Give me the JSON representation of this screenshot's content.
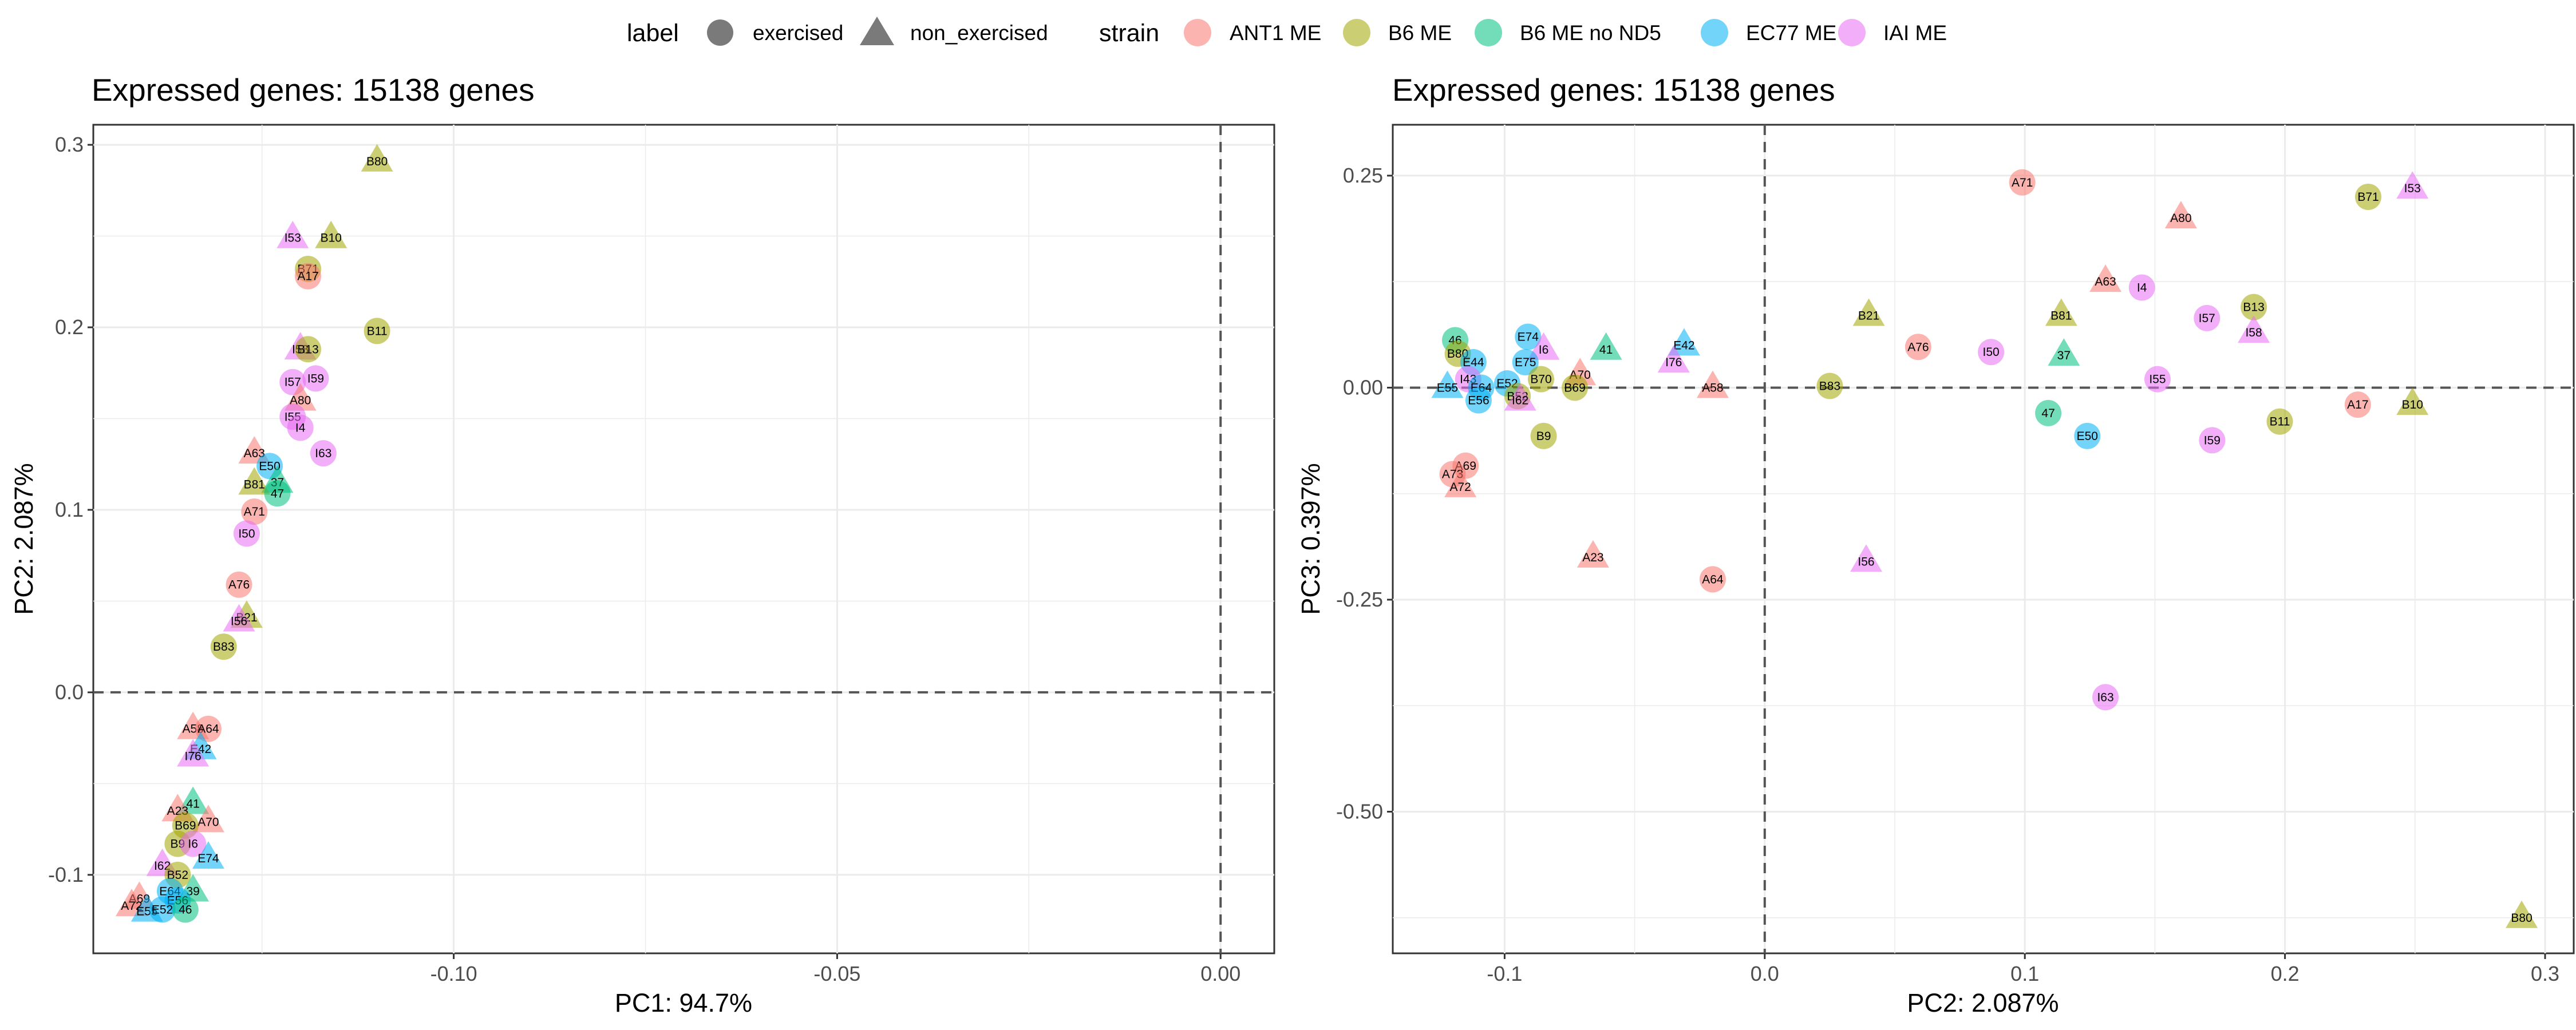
{
  "legend": {
    "label_title": "label",
    "label_items": [
      {
        "name": "exercised",
        "shape": "circle"
      },
      {
        "name": "non_exercised",
        "shape": "triangle"
      }
    ],
    "strain_title": "strain",
    "strain_items": [
      {
        "name": "ANT1 ME",
        "color": "#F8766D"
      },
      {
        "name": "B6 ME",
        "color": "#A3A500"
      },
      {
        "name": "B6 ME no ND5",
        "color": "#00BF7D"
      },
      {
        "name": "EC77 ME",
        "color": "#00B0F6"
      },
      {
        "name": "IAI ME",
        "color": "#E76BF3"
      }
    ]
  },
  "chart_data": [
    {
      "type": "scatter",
      "title": "Expressed genes: 15138 genes",
      "xlabel": "PC1: 94.7%",
      "ylabel": "PC2: 2.087%",
      "xlim": [
        -0.147,
        0.007
      ],
      "ylim": [
        -0.143,
        0.311
      ],
      "xticks": [
        -0.1,
        -0.05,
        0.0
      ],
      "xtick_labels": [
        "-0.10",
        "-0.05",
        "0.00"
      ],
      "yticks": [
        -0.1,
        0.0,
        0.1,
        0.2,
        0.3
      ],
      "ytick_labels": [
        "-0.1",
        "0.0",
        "0.1",
        "0.2",
        "0.3"
      ],
      "reference_lines": {
        "x": 0,
        "y": 0
      },
      "grid": true,
      "points": [
        {
          "label": "B80",
          "x": -0.11,
          "y": 0.291,
          "strain": "B6 ME",
          "shape": "triangle"
        },
        {
          "label": "I53",
          "x": -0.121,
          "y": 0.249,
          "strain": "IAI ME",
          "shape": "triangle"
        },
        {
          "label": "B10",
          "x": -0.116,
          "y": 0.249,
          "strain": "B6 ME",
          "shape": "triangle"
        },
        {
          "label": "B71",
          "x": -0.119,
          "y": 0.232,
          "strain": "B6 ME",
          "shape": "circle"
        },
        {
          "label": "A17",
          "x": -0.119,
          "y": 0.228,
          "strain": "ANT1 ME",
          "shape": "circle"
        },
        {
          "label": "B11",
          "x": -0.11,
          "y": 0.198,
          "strain": "B6 ME",
          "shape": "circle"
        },
        {
          "label": "I58",
          "x": -0.12,
          "y": 0.188,
          "strain": "IAI ME",
          "shape": "triangle"
        },
        {
          "label": "B13",
          "x": -0.119,
          "y": 0.188,
          "strain": "B6 ME",
          "shape": "circle"
        },
        {
          "label": "I57",
          "x": -0.121,
          "y": 0.17,
          "strain": "IAI ME",
          "shape": "circle"
        },
        {
          "label": "I59",
          "x": -0.118,
          "y": 0.172,
          "strain": "IAI ME",
          "shape": "circle"
        },
        {
          "label": "A80",
          "x": -0.12,
          "y": 0.16,
          "strain": "ANT1 ME",
          "shape": "triangle"
        },
        {
          "label": "I55",
          "x": -0.121,
          "y": 0.151,
          "strain": "IAI ME",
          "shape": "circle"
        },
        {
          "label": "I4",
          "x": -0.12,
          "y": 0.145,
          "strain": "IAI ME",
          "shape": "circle"
        },
        {
          "label": "I63",
          "x": -0.117,
          "y": 0.131,
          "strain": "IAI ME",
          "shape": "circle"
        },
        {
          "label": "A63",
          "x": -0.126,
          "y": 0.131,
          "strain": "ANT1 ME",
          "shape": "triangle"
        },
        {
          "label": "E50",
          "x": -0.124,
          "y": 0.124,
          "strain": "EC77 ME",
          "shape": "circle"
        },
        {
          "label": "37",
          "x": -0.123,
          "y": 0.115,
          "strain": "B6 ME no ND5",
          "shape": "triangle"
        },
        {
          "label": "B81",
          "x": -0.126,
          "y": 0.114,
          "strain": "B6 ME",
          "shape": "triangle"
        },
        {
          "label": "47",
          "x": -0.123,
          "y": 0.109,
          "strain": "B6 ME no ND5",
          "shape": "circle"
        },
        {
          "label": "A71",
          "x": -0.126,
          "y": 0.099,
          "strain": "ANT1 ME",
          "shape": "circle"
        },
        {
          "label": "I50",
          "x": -0.127,
          "y": 0.087,
          "strain": "IAI ME",
          "shape": "circle"
        },
        {
          "label": "A76",
          "x": -0.128,
          "y": 0.059,
          "strain": "ANT1 ME",
          "shape": "circle"
        },
        {
          "label": "B21",
          "x": -0.127,
          "y": 0.041,
          "strain": "B6 ME",
          "shape": "triangle"
        },
        {
          "label": "I56",
          "x": -0.128,
          "y": 0.039,
          "strain": "IAI ME",
          "shape": "triangle"
        },
        {
          "label": "B83",
          "x": -0.13,
          "y": 0.025,
          "strain": "B6 ME",
          "shape": "circle"
        },
        {
          "label": "A58",
          "x": -0.134,
          "y": -0.02,
          "strain": "ANT1 ME",
          "shape": "triangle"
        },
        {
          "label": "A64",
          "x": -0.132,
          "y": -0.02,
          "strain": "ANT1 ME",
          "shape": "circle"
        },
        {
          "label": "E42",
          "x": -0.133,
          "y": -0.031,
          "strain": "EC77 ME",
          "shape": "triangle"
        },
        {
          "label": "I76",
          "x": -0.134,
          "y": -0.035,
          "strain": "IAI ME",
          "shape": "triangle"
        },
        {
          "label": "41",
          "x": -0.134,
          "y": -0.061,
          "strain": "B6 ME no ND5",
          "shape": "triangle"
        },
        {
          "label": "A23",
          "x": -0.136,
          "y": -0.065,
          "strain": "ANT1 ME",
          "shape": "triangle"
        },
        {
          "label": "A70",
          "x": -0.132,
          "y": -0.071,
          "strain": "ANT1 ME",
          "shape": "triangle"
        },
        {
          "label": "B69",
          "x": -0.135,
          "y": -0.073,
          "strain": "B6 ME",
          "shape": "circle"
        },
        {
          "label": "B9",
          "x": -0.136,
          "y": -0.083,
          "strain": "B6 ME",
          "shape": "circle"
        },
        {
          "label": "I6",
          "x": -0.134,
          "y": -0.083,
          "strain": "IAI ME",
          "shape": "circle"
        },
        {
          "label": "E74",
          "x": -0.132,
          "y": -0.091,
          "strain": "EC77 ME",
          "shape": "triangle"
        },
        {
          "label": "I62",
          "x": -0.138,
          "y": -0.095,
          "strain": "IAI ME",
          "shape": "triangle"
        },
        {
          "label": "B52",
          "x": -0.136,
          "y": -0.1,
          "strain": "B6 ME",
          "shape": "circle"
        },
        {
          "label": "E64",
          "x": -0.137,
          "y": -0.109,
          "strain": "EC77 ME",
          "shape": "circle"
        },
        {
          "label": "39",
          "x": -0.134,
          "y": -0.109,
          "strain": "B6 ME no ND5",
          "shape": "triangle"
        },
        {
          "label": "A69",
          "x": -0.141,
          "y": -0.113,
          "strain": "ANT1 ME",
          "shape": "triangle"
        },
        {
          "label": "A72",
          "x": -0.142,
          "y": -0.117,
          "strain": "ANT1 ME",
          "shape": "triangle"
        },
        {
          "label": "E56",
          "x": -0.136,
          "y": -0.114,
          "strain": "EC77 ME",
          "shape": "circle"
        },
        {
          "label": "E55",
          "x": -0.14,
          "y": -0.12,
          "strain": "EC77 ME",
          "shape": "triangle"
        },
        {
          "label": "E52",
          "x": -0.138,
          "y": -0.119,
          "strain": "EC77 ME",
          "shape": "circle"
        },
        {
          "label": "46",
          "x": -0.135,
          "y": -0.119,
          "strain": "B6 ME no ND5",
          "shape": "circle"
        }
      ]
    },
    {
      "type": "scatter",
      "title": "Expressed genes: 15138 genes",
      "xlabel": "PC2: 2.087%",
      "ylabel": "PC3: 0.397%",
      "xlim": [
        -0.143,
        0.311
      ],
      "ylim": [
        -0.667,
        0.31
      ],
      "xticks": [
        -0.1,
        0.0,
        0.1,
        0.2,
        0.3
      ],
      "xtick_labels": [
        "-0.1",
        "0.0",
        "0.1",
        "0.2",
        "0.3"
      ],
      "yticks": [
        -0.5,
        -0.25,
        0.0,
        0.25
      ],
      "ytick_labels": [
        "-0.50",
        "-0.25",
        "0.00",
        "0.25"
      ],
      "reference_lines": {
        "x": 0,
        "y": 0
      },
      "grid": true,
      "points": [
        {
          "label": "A71",
          "x": 0.099,
          "y": 0.242,
          "strain": "ANT1 ME",
          "shape": "circle"
        },
        {
          "label": "I53",
          "x": 0.249,
          "y": 0.235,
          "strain": "IAI ME",
          "shape": "triangle"
        },
        {
          "label": "B71",
          "x": 0.232,
          "y": 0.225,
          "strain": "B6 ME",
          "shape": "circle"
        },
        {
          "label": "A80",
          "x": 0.16,
          "y": 0.2,
          "strain": "ANT1 ME",
          "shape": "triangle"
        },
        {
          "label": "A63",
          "x": 0.131,
          "y": 0.125,
          "strain": "ANT1 ME",
          "shape": "triangle"
        },
        {
          "label": "I4",
          "x": 0.145,
          "y": 0.118,
          "strain": "IAI ME",
          "shape": "circle"
        },
        {
          "label": "B21",
          "x": 0.04,
          "y": 0.085,
          "strain": "B6 ME",
          "shape": "triangle"
        },
        {
          "label": "B81",
          "x": 0.114,
          "y": 0.085,
          "strain": "B6 ME",
          "shape": "triangle"
        },
        {
          "label": "B13",
          "x": 0.188,
          "y": 0.095,
          "strain": "B6 ME",
          "shape": "circle"
        },
        {
          "label": "I57",
          "x": 0.17,
          "y": 0.082,
          "strain": "IAI ME",
          "shape": "circle"
        },
        {
          "label": "I58",
          "x": 0.188,
          "y": 0.065,
          "strain": "IAI ME",
          "shape": "triangle"
        },
        {
          "label": "A76",
          "x": 0.059,
          "y": 0.048,
          "strain": "ANT1 ME",
          "shape": "circle"
        },
        {
          "label": "I50",
          "x": 0.087,
          "y": 0.042,
          "strain": "IAI ME",
          "shape": "circle"
        },
        {
          "label": "37",
          "x": 0.115,
          "y": 0.038,
          "strain": "B6 ME no ND5",
          "shape": "triangle"
        },
        {
          "label": "I55",
          "x": 0.151,
          "y": 0.01,
          "strain": "IAI ME",
          "shape": "circle"
        },
        {
          "label": "46",
          "x": -0.119,
          "y": 0.056,
          "strain": "B6 ME no ND5",
          "shape": "circle"
        },
        {
          "label": "E74",
          "x": -0.091,
          "y": 0.06,
          "strain": "EC77 ME",
          "shape": "circle"
        },
        {
          "label": "E42",
          "x": -0.031,
          "y": 0.05,
          "strain": "EC77 ME",
          "shape": "triangle"
        },
        {
          "label": "41",
          "x": -0.061,
          "y": 0.045,
          "strain": "B6 ME no ND5",
          "shape": "triangle"
        },
        {
          "label": "B80",
          "x": -0.118,
          "y": 0.04,
          "strain": "B6 ME",
          "shape": "circle"
        },
        {
          "label": "I6",
          "x": -0.085,
          "y": 0.045,
          "strain": "IAI ME",
          "shape": "triangle"
        },
        {
          "label": "E44",
          "x": -0.112,
          "y": 0.03,
          "strain": "EC77 ME",
          "shape": "circle"
        },
        {
          "label": "E75",
          "x": -0.092,
          "y": 0.03,
          "strain": "EC77 ME",
          "shape": "circle"
        },
        {
          "label": "I76",
          "x": -0.035,
          "y": 0.03,
          "strain": "IAI ME",
          "shape": "triangle"
        },
        {
          "label": "A70",
          "x": -0.071,
          "y": 0.015,
          "strain": "ANT1 ME",
          "shape": "triangle"
        },
        {
          "label": "B70",
          "x": -0.086,
          "y": 0.01,
          "strain": "B6 ME",
          "shape": "circle"
        },
        {
          "label": "B83",
          "x": 0.025,
          "y": 0.002,
          "strain": "B6 ME",
          "shape": "circle"
        },
        {
          "label": "A58",
          "x": -0.02,
          "y": 0.0,
          "strain": "ANT1 ME",
          "shape": "triangle"
        },
        {
          "label": "B69",
          "x": -0.073,
          "y": 0.0,
          "strain": "B6 ME",
          "shape": "circle"
        },
        {
          "label": "E52",
          "x": -0.099,
          "y": 0.005,
          "strain": "EC77 ME",
          "shape": "circle"
        },
        {
          "label": "I43",
          "x": -0.114,
          "y": 0.01,
          "strain": "IAI ME",
          "shape": "circle"
        },
        {
          "label": "E64",
          "x": -0.109,
          "y": 0.0,
          "strain": "EC77 ME",
          "shape": "circle"
        },
        {
          "label": "E55",
          "x": -0.122,
          "y": 0.0,
          "strain": "EC77 ME",
          "shape": "triangle"
        },
        {
          "label": "E56",
          "x": -0.11,
          "y": -0.015,
          "strain": "EC77 ME",
          "shape": "circle"
        },
        {
          "label": "B52",
          "x": -0.095,
          "y": -0.01,
          "strain": "B6 ME",
          "shape": "circle"
        },
        {
          "label": "I62",
          "x": -0.094,
          "y": -0.015,
          "strain": "IAI ME",
          "shape": "triangle"
        },
        {
          "label": "47",
          "x": 0.109,
          "y": -0.03,
          "strain": "B6 ME no ND5",
          "shape": "circle"
        },
        {
          "label": "B9",
          "x": -0.085,
          "y": -0.057,
          "strain": "B6 ME",
          "shape": "circle"
        },
        {
          "label": "E50",
          "x": 0.124,
          "y": -0.057,
          "strain": "EC77 ME",
          "shape": "circle"
        },
        {
          "label": "I59",
          "x": 0.172,
          "y": -0.062,
          "strain": "IAI ME",
          "shape": "circle"
        },
        {
          "label": "B11",
          "x": 0.198,
          "y": -0.04,
          "strain": "B6 ME",
          "shape": "circle"
        },
        {
          "label": "A17",
          "x": 0.228,
          "y": -0.02,
          "strain": "ANT1 ME",
          "shape": "circle"
        },
        {
          "label": "B10",
          "x": 0.249,
          "y": -0.02,
          "strain": "B6 ME",
          "shape": "triangle"
        },
        {
          "label": "A69",
          "x": -0.115,
          "y": -0.092,
          "strain": "ANT1 ME",
          "shape": "circle"
        },
        {
          "label": "A73",
          "x": -0.12,
          "y": -0.102,
          "strain": "ANT1 ME",
          "shape": "circle"
        },
        {
          "label": "A72",
          "x": -0.117,
          "y": -0.117,
          "strain": "ANT1 ME",
          "shape": "triangle"
        },
        {
          "label": "A23",
          "x": -0.066,
          "y": -0.2,
          "strain": "ANT1 ME",
          "shape": "triangle"
        },
        {
          "label": "A64",
          "x": -0.02,
          "y": -0.226,
          "strain": "ANT1 ME",
          "shape": "circle"
        },
        {
          "label": "I56",
          "x": 0.039,
          "y": -0.205,
          "strain": "IAI ME",
          "shape": "triangle"
        },
        {
          "label": "I63",
          "x": 0.131,
          "y": -0.365,
          "strain": "IAI ME",
          "shape": "circle"
        },
        {
          "label": "B80",
          "x": 0.291,
          "y": -0.625,
          "strain": "B6 ME",
          "shape": "triangle"
        }
      ]
    }
  ]
}
